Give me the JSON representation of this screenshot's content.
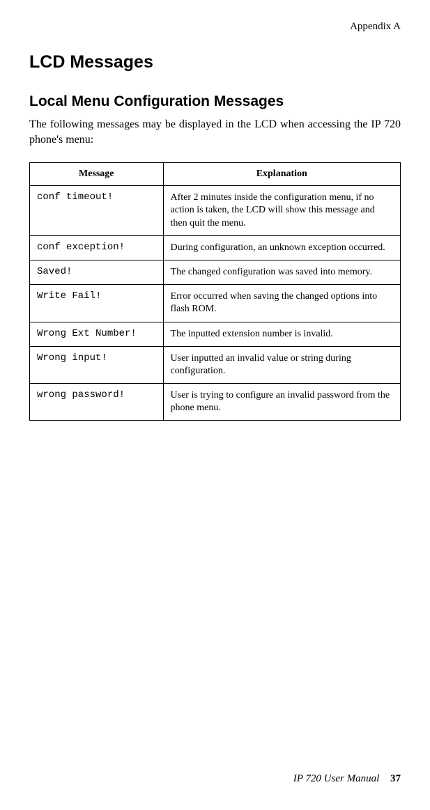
{
  "header": {
    "appendix": "Appendix A"
  },
  "titles": {
    "h1": "LCD Messages",
    "h2": "Local Menu Configuration Messages"
  },
  "intro": "The following messages may be displayed in the LCD when accessing the IP 720 phone's menu:",
  "table": {
    "columns": [
      "Message",
      "Explanation"
    ],
    "col_widths": [
      "36%",
      "64%"
    ],
    "header_font_weight": "bold",
    "border_color": "#000000",
    "message_font_family": "Courier New",
    "explanation_font_family": "Times New Roman",
    "cell_fontsize": 14,
    "rows": [
      {
        "message": "conf timeout!",
        "explanation": "After 2 minutes inside the configuration menu, if no action is taken, the LCD will show this message and then quit the menu."
      },
      {
        "message": "conf exception!",
        "explanation": "During configuration, an unknown exception occurred."
      },
      {
        "message": "Saved!",
        "explanation": "The changed configuration was saved into memory."
      },
      {
        "message": "Write Fail!",
        "explanation": "Error occurred when saving the changed options into flash ROM."
      },
      {
        "message": "Wrong Ext Number!",
        "explanation": "The inputted extension number is invalid."
      },
      {
        "message": "Wrong input!",
        "explanation": "User inputted an invalid value or string during configuration."
      },
      {
        "message": "wrong password!",
        "explanation": "User is trying to configure an invalid password from the phone menu."
      }
    ]
  },
  "footer": {
    "manual": "IP 720 User Manual",
    "page": "37"
  },
  "colors": {
    "background": "#ffffff",
    "text": "#000000",
    "border": "#000000"
  },
  "typography": {
    "body_font": "Times New Roman",
    "heading_font": "Arial",
    "mono_font": "Courier New",
    "h1_size": 25,
    "h2_size": 21,
    "body_size": 16,
    "table_size": 14,
    "footer_size": 15
  }
}
